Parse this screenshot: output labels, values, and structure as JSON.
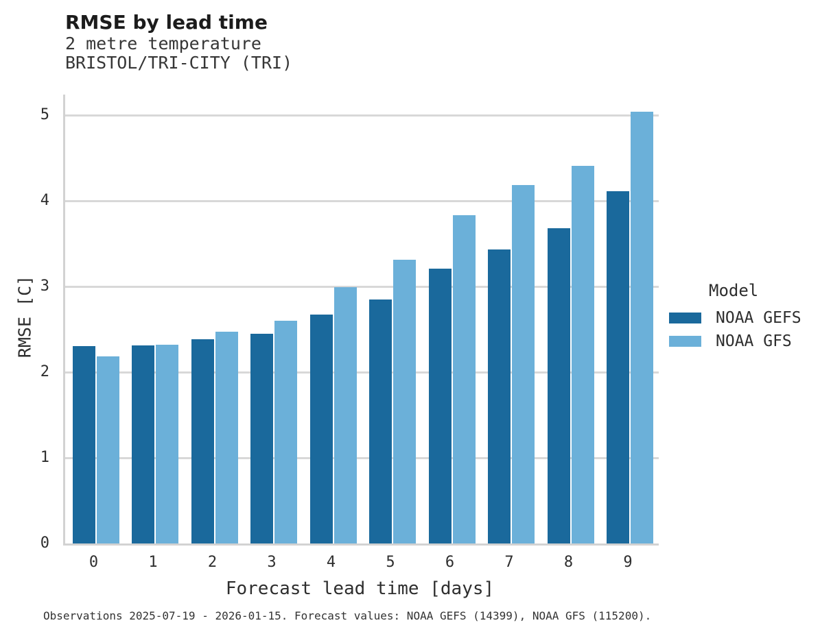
{
  "header": {
    "title": "RMSE by lead time",
    "subtitle": "2 metre temperature",
    "station": "BRISTOL/TRI-CITY (TRI)"
  },
  "legend": {
    "title": "Model"
  },
  "footer": {
    "note": "Observations 2025-07-19 - 2026-01-15. Forecast values: NOAA GEFS (14399), NOAA GFS (115200)."
  },
  "colors": {
    "gefs": "#1a699c",
    "gfs": "#6bb0d9",
    "grid": "#d8d8d8",
    "spine": "#d2d2d2"
  },
  "chart_data": {
    "type": "bar",
    "title": "RMSE by lead time",
    "subtitle": "2 metre temperature",
    "station": "BRISTOL/TRI-CITY (TRI)",
    "xlabel": "Forecast lead time [days]",
    "ylabel": "RMSE [C]",
    "categories": [
      "0",
      "1",
      "2",
      "3",
      "4",
      "5",
      "6",
      "7",
      "8",
      "9"
    ],
    "yticks": [
      0,
      1,
      2,
      3,
      4,
      5
    ],
    "ylim": [
      0,
      5.24
    ],
    "grid": true,
    "legend_title": "Model",
    "legend_position": "right",
    "series": [
      {
        "name": "NOAA GEFS",
        "color": "#1a699c",
        "values": [
          2.3,
          2.31,
          2.38,
          2.45,
          2.67,
          2.85,
          3.21,
          3.43,
          3.68,
          4.11
        ]
      },
      {
        "name": "NOAA GFS",
        "color": "#6bb0d9",
        "values": [
          2.18,
          2.32,
          2.47,
          2.6,
          2.99,
          3.31,
          3.83,
          4.18,
          4.41,
          5.04
        ]
      }
    ],
    "footnote": "Observations 2025-07-19 - 2026-01-15. Forecast values: NOAA GEFS (14399), NOAA GFS (115200)."
  }
}
